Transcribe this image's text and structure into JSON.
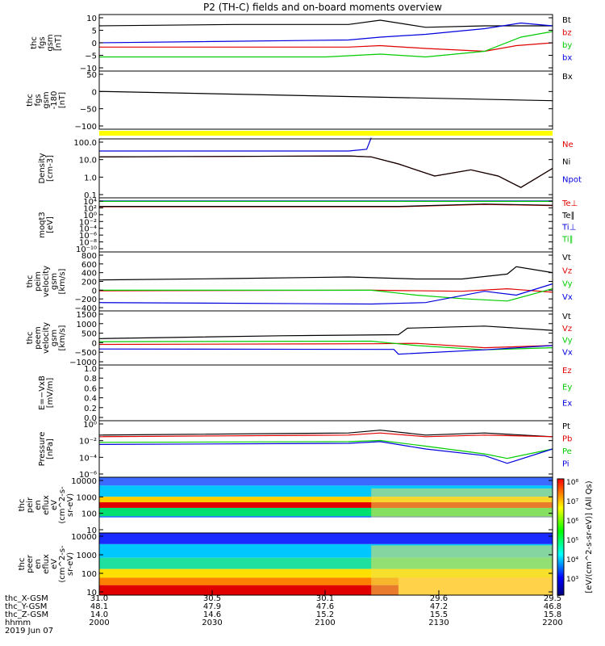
{
  "title": "P2 (TH-C) fields and on-board moments overview",
  "colors": {
    "black": "#000000",
    "red": "#e00000",
    "green": "#00cc00",
    "blue": "#0000dd",
    "yellow": "#ffff00"
  },
  "chart_data": [
    {
      "type": "line",
      "ylabel_lines": [
        "thc",
        "fgs",
        "gsm",
        "[nT]"
      ],
      "ylim": [
        -10,
        10
      ],
      "yticks": [
        "10",
        "5",
        "0",
        "−5",
        "−10"
      ],
      "legend": [
        {
          "label": "Bt",
          "color": "black"
        },
        {
          "label": "bz",
          "color": "red"
        },
        {
          "label": "by",
          "color": "green"
        },
        {
          "label": "bx",
          "color": "blue"
        }
      ],
      "series": [
        {
          "name": "Bt",
          "x": [
            0,
            0.3,
            0.55,
            0.62,
            0.72,
            0.85,
            1
          ],
          "y": [
            6,
            6.5,
            6.5,
            8,
            5.5,
            6,
            6
          ]
        },
        {
          "name": "bz",
          "x": [
            0,
            0.55,
            0.62,
            0.72,
            0.85,
            0.92,
            1
          ],
          "y": [
            -1.5,
            -1.5,
            -1,
            -2,
            -3,
            -1,
            0
          ]
        },
        {
          "name": "by",
          "x": [
            0,
            0.5,
            0.62,
            0.72,
            0.85,
            0.93,
            1
          ],
          "y": [
            -5,
            -5,
            -4,
            -5,
            -3,
            2,
            4
          ]
        },
        {
          "name": "bx",
          "x": [
            0,
            0.55,
            0.62,
            0.72,
            0.85,
            0.93,
            1
          ],
          "y": [
            0,
            1,
            2,
            3,
            5,
            7,
            6
          ]
        }
      ]
    },
    {
      "type": "line",
      "ylabel_lines": [
        "thc",
        "fgs",
        "gsm",
        "-180",
        "[nT]"
      ],
      "ylim": [
        -140,
        60
      ],
      "yticks": [
        "50",
        "0",
        "−50",
        "−100"
      ],
      "legend": [
        {
          "label": "Bx",
          "color": "black"
        }
      ],
      "series": [
        {
          "name": "Bx",
          "x": [
            0,
            1
          ],
          "y": [
            -10,
            -42
          ]
        }
      ]
    },
    {
      "type": "line",
      "ylabel_lines": [
        "Density",
        "[cm-3]"
      ],
      "log": true,
      "ylim": [
        0.01,
        100
      ],
      "yticks": [
        "100.0",
        "10.0",
        "1.0",
        "0.1"
      ],
      "legend": [
        {
          "label": "Ne",
          "color": "red"
        },
        {
          "label": "Ni",
          "color": "black"
        },
        {
          "label": "Npot",
          "color": "blue"
        }
      ],
      "series": [
        {
          "name": "Ne",
          "x": [
            0,
            0.55,
            0.6,
            0.66,
            0.74,
            0.82,
            0.88,
            0.93,
            1
          ],
          "y": [
            6,
            7,
            6,
            2,
            0.3,
            0.8,
            0.3,
            0.05,
            1
          ]
        },
        {
          "name": "Ni",
          "x": [
            0,
            0.55,
            0.6,
            0.66,
            0.74,
            0.82,
            0.88,
            0.93,
            1
          ],
          "y": [
            6,
            7,
            6,
            2,
            0.3,
            0.8,
            0.3,
            0.05,
            1
          ]
        },
        {
          "name": "Npot",
          "x": [
            0,
            0.55,
            0.59,
            0.6
          ],
          "y": [
            15,
            15,
            20,
            120
          ]
        }
      ]
    },
    {
      "type": "line",
      "ylabel_lines": [
        "moqt3",
        "[eV]"
      ],
      "log": true,
      "ylim": [
        1e-10,
        10000.0
      ],
      "yticks": [
        "10⁴",
        "10²",
        "10⁰",
        "10⁻²",
        "10⁻⁴",
        "10⁻⁶",
        "10⁻⁸",
        "10⁻¹⁰"
      ],
      "legend": [
        {
          "label": "Te⊥",
          "color": "red"
        },
        {
          "label": "Te∥",
          "color": "black"
        },
        {
          "label": "Ti⊥",
          "color": "blue"
        },
        {
          "label": "Ti∥",
          "color": "green"
        }
      ],
      "series": [
        {
          "name": "Te⊥",
          "x": [
            0,
            0.66,
            0.85,
            1
          ],
          "y": [
            50,
            50,
            200,
            100
          ]
        },
        {
          "name": "Te∥",
          "x": [
            0,
            0.66,
            0.85,
            1
          ],
          "y": [
            60,
            60,
            250,
            120
          ]
        },
        {
          "name": "Ti⊥",
          "x": [
            0,
            1
          ],
          "y": [
            1500,
            1500
          ]
        },
        {
          "name": "Ti∥",
          "x": [
            0,
            1
          ],
          "y": [
            1200,
            1200
          ]
        }
      ]
    },
    {
      "type": "line",
      "ylabel_lines": [
        "thc",
        "peim",
        "velocity",
        "gsm",
        "[km/s]"
      ],
      "ylim": [
        -400,
        800
      ],
      "yticks": [
        "800",
        "600",
        "400",
        "200",
        "0",
        "−200",
        "−400"
      ],
      "legend": [
        {
          "label": "Vt",
          "color": "black"
        },
        {
          "label": "Vz",
          "color": "red"
        },
        {
          "label": "Vy",
          "color": "green"
        },
        {
          "label": "Vx",
          "color": "blue"
        }
      ],
      "series": [
        {
          "name": "Vt",
          "x": [
            0,
            0.3,
            0.55,
            0.7,
            0.8,
            0.9,
            0.92,
            1
          ],
          "y": [
            230,
            260,
            290,
            250,
            250,
            350,
            500,
            380
          ]
        },
        {
          "name": "Vz",
          "x": [
            0,
            0.6,
            0.8,
            0.9,
            1
          ],
          "y": [
            10,
            20,
            0,
            50,
            -20
          ]
        },
        {
          "name": "Vy",
          "x": [
            0,
            0.6,
            0.7,
            0.8,
            0.9,
            1
          ],
          "y": [
            20,
            20,
            -80,
            -150,
            -200,
            50
          ]
        },
        {
          "name": "Vx",
          "x": [
            0,
            0.6,
            0.72,
            0.85,
            0.92,
            1
          ],
          "y": [
            -230,
            -260,
            -230,
            0,
            -80,
            150
          ]
        }
      ]
    },
    {
      "type": "line",
      "ylabel_lines": [
        "thc",
        "peem",
        "velocity",
        "gsm",
        "[km/s]"
      ],
      "ylim": [
        -1000,
        1500
      ],
      "yticks": [
        "1500",
        "1000",
        "500",
        "0",
        "−500",
        "−1000"
      ],
      "legend": [
        {
          "label": "Vt",
          "color": "black"
        },
        {
          "label": "Vz",
          "color": "red"
        },
        {
          "label": "Vy",
          "color": "green"
        },
        {
          "label": "Vx",
          "color": "blue"
        }
      ],
      "series": [
        {
          "name": "Vt",
          "x": [
            0,
            0.4,
            0.66,
            0.68,
            0.85,
            1
          ],
          "y": [
            220,
            350,
            400,
            700,
            800,
            600
          ]
        },
        {
          "name": "Vz",
          "x": [
            0,
            0.6,
            0.7,
            0.85,
            1
          ],
          "y": [
            -50,
            -20,
            0,
            -200,
            -100
          ]
        },
        {
          "name": "Vy",
          "x": [
            0,
            0.6,
            0.7,
            0.85,
            1
          ],
          "y": [
            80,
            100,
            -100,
            -300,
            -200
          ]
        },
        {
          "name": "Vx",
          "x": [
            0,
            0.65,
            0.66,
            0.85,
            1
          ],
          "y": [
            -260,
            -280,
            -500,
            -300,
            -100
          ]
        }
      ]
    },
    {
      "type": "line",
      "ylabel_lines": [
        "E=−VxB",
        "[mV/m]"
      ],
      "ylim": [
        0,
        1
      ],
      "yticks": [
        "1.0",
        "0.8",
        "0.6",
        "0.4",
        "0.2",
        "0.0"
      ],
      "legend": [
        {
          "label": "Ez",
          "color": "red"
        },
        {
          "label": "Ey",
          "color": "green"
        },
        {
          "label": "Ex",
          "color": "blue"
        }
      ],
      "series": []
    },
    {
      "type": "line",
      "ylabel_lines": [
        "Pressure",
        "[nPa]"
      ],
      "log": true,
      "ylim": [
        1e-06,
        1
      ],
      "yticks": [
        "10⁰",
        "10⁻²",
        "10⁻⁴",
        "10⁻⁶"
      ],
      "legend": [
        {
          "label": "Pt",
          "color": "black"
        },
        {
          "label": "Pb",
          "color": "red"
        },
        {
          "label": "Pe",
          "color": "green"
        },
        {
          "label": "Pi",
          "color": "blue"
        }
      ],
      "series": [
        {
          "name": "Pt",
          "x": [
            0,
            0.55,
            0.62,
            0.72,
            0.85,
            1
          ],
          "y": [
            0.03,
            0.05,
            0.1,
            0.03,
            0.05,
            0.02
          ]
        },
        {
          "name": "Pb",
          "x": [
            0,
            0.55,
            0.62,
            0.72,
            0.85,
            1
          ],
          "y": [
            0.02,
            0.03,
            0.05,
            0.02,
            0.03,
            0.02
          ]
        },
        {
          "name": "Pe",
          "x": [
            0,
            0.55,
            0.62,
            0.72,
            0.85,
            0.9,
            1
          ],
          "y": [
            0.005,
            0.006,
            0.008,
            0.002,
            0.0003,
            0.0001,
            0.001
          ]
        },
        {
          "name": "Pi",
          "x": [
            0,
            0.55,
            0.62,
            0.72,
            0.85,
            0.9,
            1
          ],
          "y": [
            0.003,
            0.004,
            0.006,
            0.001,
            0.0002,
            3e-05,
            0.001
          ]
        }
      ]
    },
    {
      "type": "heatmap",
      "ylabel_lines": [
        "thc",
        "peir",
        "en",
        "eflux",
        "eV",
        "(cm^2-s-",
        "sr-eV)"
      ],
      "log": true,
      "ylim": [
        1,
        30000
      ],
      "yticks": [
        "10000",
        "1000",
        "100",
        "10"
      ]
    },
    {
      "type": "heatmap",
      "ylabel_lines": [
        "thc",
        "peer",
        "en",
        "eflux",
        "eV",
        "(cm^2-s-",
        "sr-eV)"
      ],
      "log": true,
      "ylim": [
        5,
        30000
      ],
      "yticks": [
        "10000",
        "1000",
        "100",
        "10"
      ]
    }
  ],
  "colorbar": {
    "label": "[eV/(cm^2-s-sr-eV)] (All Qs)",
    "ticks": [
      "10⁸",
      "10⁷",
      "10⁶",
      "10⁵",
      "10⁴",
      "10³"
    ]
  },
  "x_axis": {
    "row_labels": [
      "thc_X-GSM",
      "thc_Y-GSM",
      "thc_Z-GSM",
      "hhmm",
      "2019 Jun 07"
    ],
    "ticks": [
      {
        "x_gsm": "31.0",
        "y_gsm": "48.1",
        "z_gsm": "14.0",
        "hhmm": "2000"
      },
      {
        "x_gsm": "30.5",
        "y_gsm": "47.9",
        "z_gsm": "14.6",
        "hhmm": "2030"
      },
      {
        "x_gsm": "30.1",
        "y_gsm": "47.6",
        "z_gsm": "15.2",
        "hhmm": "2100"
      },
      {
        "x_gsm": "29.6",
        "y_gsm": "47.2",
        "z_gsm": "15.5",
        "hhmm": "2130"
      },
      {
        "x_gsm": "29.5",
        "y_gsm": "46.8",
        "z_gsm": "15.8",
        "hhmm": "2200"
      }
    ]
  }
}
